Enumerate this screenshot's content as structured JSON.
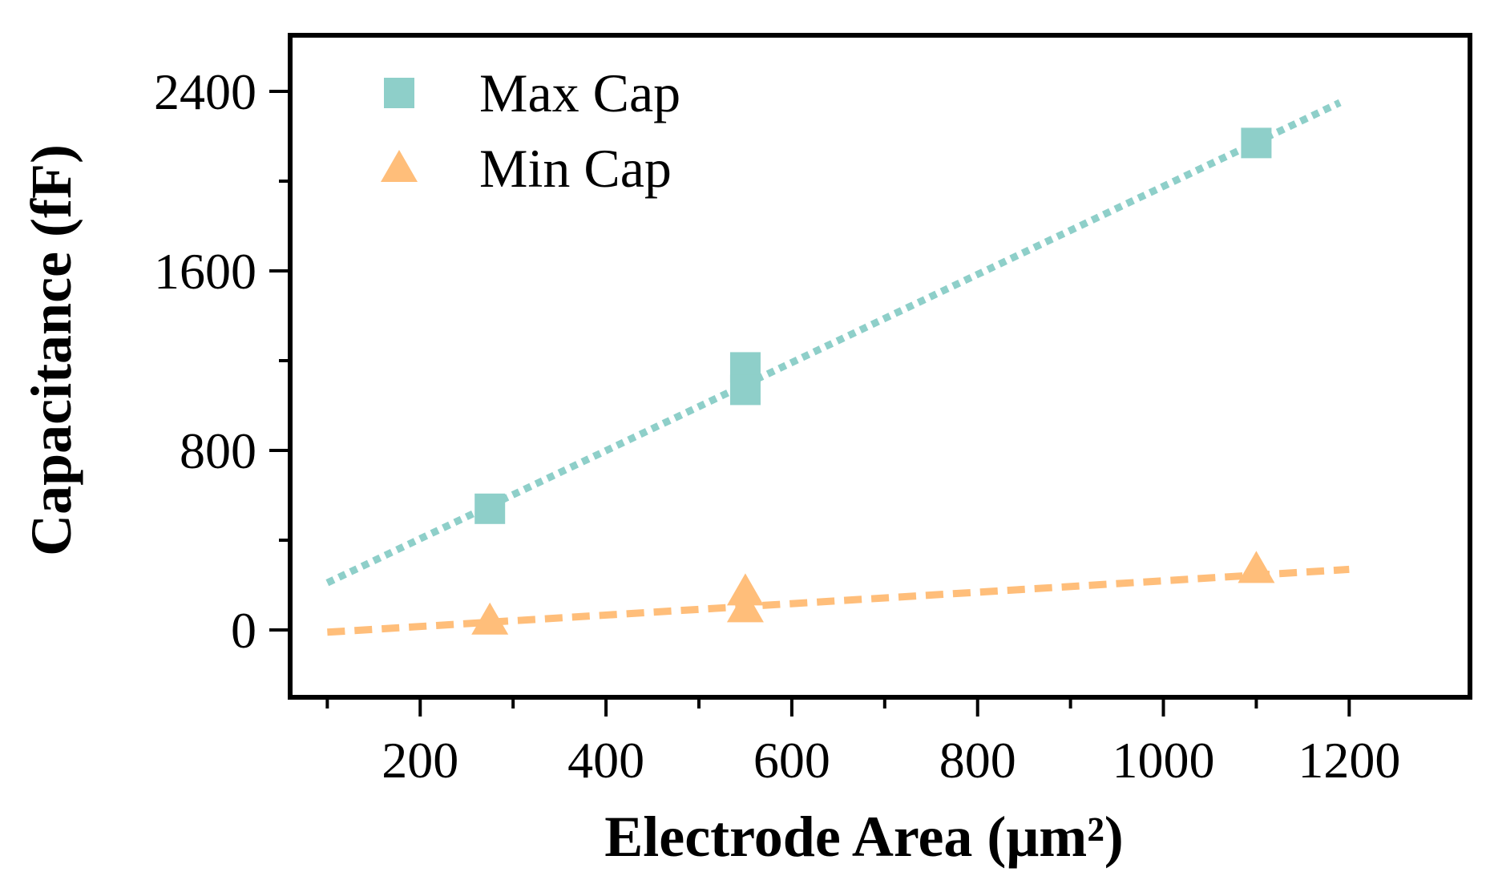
{
  "chart_data": {
    "type": "scatter",
    "xlabel": "Electrode Area (μm²)",
    "ylabel": "Capacitance (fF)",
    "xlim": [
      60,
      1330
    ],
    "ylim": [
      -300,
      2650
    ],
    "x_ticks": [
      200,
      400,
      600,
      800,
      1000,
      1200
    ],
    "x_minor_ticks": [
      100,
      300,
      500,
      700,
      900,
      1100
    ],
    "y_ticks": [
      0,
      800,
      1600,
      2400
    ],
    "y_minor_ticks": [
      400,
      1200,
      2000
    ],
    "grid": false,
    "legend_position": "top-left",
    "series": [
      {
        "name": "Max Cap",
        "marker": "square",
        "color": "#8ecfc9",
        "points": [
          {
            "x": 275,
            "y": 540
          },
          {
            "x": 550,
            "y": 1170
          },
          {
            "x": 550,
            "y": 1070
          },
          {
            "x": 1100,
            "y": 2170
          }
        ],
        "fit": {
          "style": "dotted",
          "x": [
            100,
            1190
          ],
          "y": [
            210,
            2350
          ]
        }
      },
      {
        "name": "Min Cap",
        "marker": "triangle",
        "color": "#ffbe7a",
        "points": [
          {
            "x": 275,
            "y": 40
          },
          {
            "x": 550,
            "y": 170
          },
          {
            "x": 550,
            "y": 95
          },
          {
            "x": 1100,
            "y": 270
          }
        ],
        "fit": {
          "style": "dashed",
          "x": [
            100,
            1200
          ],
          "y": [
            -10,
            270
          ]
        }
      }
    ]
  }
}
